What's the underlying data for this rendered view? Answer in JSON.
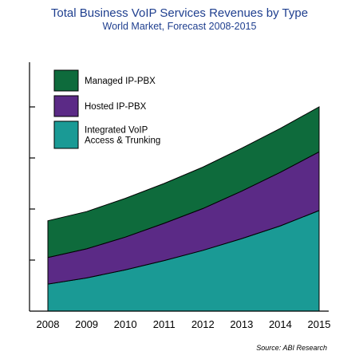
{
  "chart_data": {
    "type": "area",
    "stacked": true,
    "title": "Total Business VoIP Services Revenues by Type",
    "subtitle": "World Market, Forecast 2008-2015",
    "source": "Source: ABI Research",
    "categories": [
      "2008",
      "2009",
      "2010",
      "2011",
      "2012",
      "2013",
      "2014",
      "2015"
    ],
    "ylim": [
      0,
      5
    ],
    "y_tick_labels_shown": false,
    "legend_position": "top-left",
    "series": [
      {
        "name": "Integrated VoIP Access & Trunking",
        "legend_lines": [
          "Integrated VoIP",
          "Access & Trunking"
        ],
        "color": "#1a9a95",
        "values": [
          0.53,
          0.65,
          0.81,
          0.99,
          1.19,
          1.42,
          1.67,
          1.97
        ]
      },
      {
        "name": "Hosted IP-PBX",
        "legend_lines": [
          "Hosted IP-PBX"
        ],
        "color": "#5b2a86",
        "values": [
          0.52,
          0.57,
          0.64,
          0.73,
          0.82,
          0.93,
          1.05,
          1.15
        ]
      },
      {
        "name": "Managed IP-PBX",
        "legend_lines": [
          "Managed IP-PBX"
        ],
        "color": "#0e6b3c",
        "values": [
          0.72,
          0.73,
          0.76,
          0.78,
          0.81,
          0.84,
          0.86,
          0.88
        ]
      }
    ]
  }
}
